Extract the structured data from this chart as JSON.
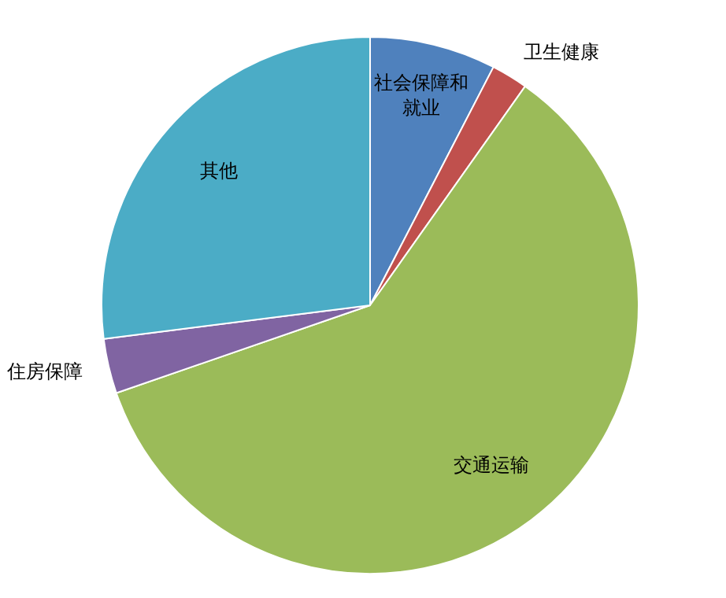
{
  "chart_data": {
    "type": "pie",
    "categories": [
      "社会保障和就业",
      "卫生健康",
      "交通运输",
      "住房保障",
      "其他"
    ],
    "values": [
      7.6,
      2.2,
      59.9,
      3.3,
      27.0
    ],
    "colors": [
      "#4f81bd",
      "#c0504d",
      "#9bbb59",
      "#8064a2",
      "#4bacc6"
    ],
    "legend": false
  }
}
